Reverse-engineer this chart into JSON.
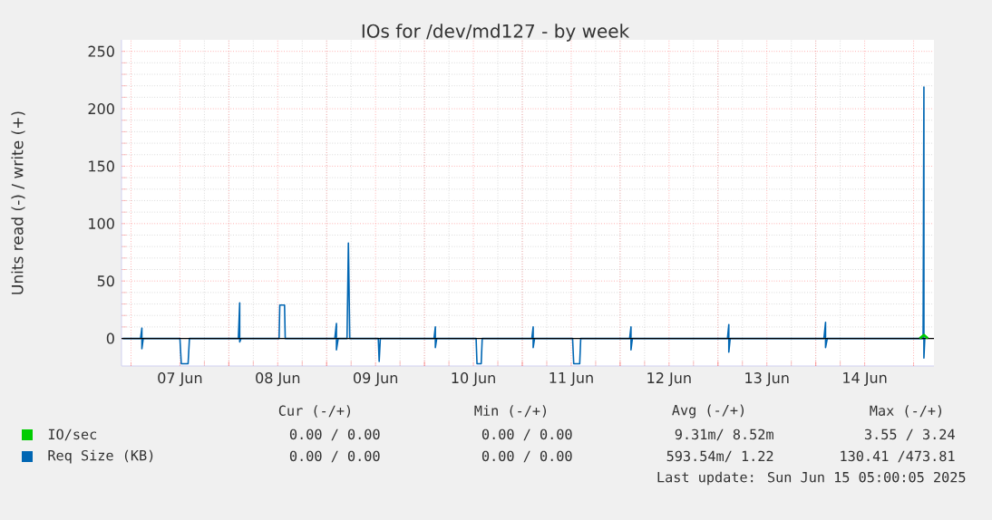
{
  "chart_data": {
    "type": "line",
    "title": "IOs for /dev/md127 - by week",
    "ylabel": "Units read (-) / write (+)",
    "xlim": [
      "2025-06-06T21:40",
      "2025-06-15T05:00"
    ],
    "xticks": [
      {
        "value": "2025-06-07T00:00",
        "label": null
      },
      {
        "value": "2025-06-07T12:00",
        "label": "07 Jun"
      },
      {
        "value": "2025-06-08T00:00",
        "label": null
      },
      {
        "value": "2025-06-08T12:00",
        "label": "08 Jun"
      },
      {
        "value": "2025-06-09T00:00",
        "label": null
      },
      {
        "value": "2025-06-09T12:00",
        "label": "09 Jun"
      },
      {
        "value": "2025-06-10T00:00",
        "label": null
      },
      {
        "value": "2025-06-10T12:00",
        "label": "10 Jun"
      },
      {
        "value": "2025-06-11T00:00",
        "label": null
      },
      {
        "value": "2025-06-11T12:00",
        "label": "11 Jun"
      },
      {
        "value": "2025-06-12T00:00",
        "label": null
      },
      {
        "value": "2025-06-12T12:00",
        "label": "12 Jun"
      },
      {
        "value": "2025-06-13T00:00",
        "label": null
      },
      {
        "value": "2025-06-13T12:00",
        "label": "13 Jun"
      },
      {
        "value": "2025-06-14T00:00",
        "label": null
      },
      {
        "value": "2025-06-14T12:00",
        "label": "14 Jun"
      },
      {
        "value": "2025-06-15T00:00",
        "label": null
      }
    ],
    "ylim": [
      -24,
      260
    ],
    "yticks": [
      0,
      50,
      100,
      150,
      200,
      250
    ],
    "grid": true,
    "legend": "bottom left",
    "series": [
      {
        "name": "IO/sec",
        "color": "#00cc00",
        "x": [
          "2025-06-15T01:30",
          "2025-06-15T02:32",
          "2025-06-15T03:30"
        ],
        "values": [
          0,
          3,
          0
        ]
      },
      {
        "name": "Req Size (KB)",
        "color": "#0066b3",
        "x": [
          "2025-06-06T22:00",
          "2025-06-07T02:20",
          "2025-06-07T02:40",
          "2025-06-07T02:40",
          "2025-06-07T03:00",
          "2025-06-07T12:00",
          "2025-06-07T12:20",
          "2025-06-07T14:00",
          "2025-06-07T14:20",
          "2025-06-08T02:20",
          "2025-06-08T02:40",
          "2025-06-08T02:40",
          "2025-06-08T03:00",
          "2025-06-08T12:20",
          "2025-06-08T12:30",
          "2025-06-08T13:40",
          "2025-06-08T13:50",
          "2025-06-09T02:00",
          "2025-06-09T02:24",
          "2025-06-09T02:24",
          "2025-06-09T02:50",
          "2025-06-09T05:00",
          "2025-06-09T05:20",
          "2025-06-09T05:40",
          "2025-06-09T12:40",
          "2025-06-09T12:53",
          "2025-06-09T13:10",
          "2025-06-10T02:20",
          "2025-06-10T02:40",
          "2025-06-10T02:40",
          "2025-06-10T03:00",
          "2025-06-10T12:40",
          "2025-06-10T12:53",
          "2025-06-10T13:55",
          "2025-06-10T14:10",
          "2025-06-11T02:20",
          "2025-06-11T02:40",
          "2025-06-11T02:40",
          "2025-06-11T03:00",
          "2025-06-11T12:20",
          "2025-06-11T12:37",
          "2025-06-11T14:05",
          "2025-06-11T14:20",
          "2025-06-12T02:20",
          "2025-06-12T02:40",
          "2025-06-12T02:40",
          "2025-06-12T03:00",
          "2025-06-13T02:20",
          "2025-06-13T02:40",
          "2025-06-13T02:40",
          "2025-06-13T03:00",
          "2025-06-14T02:00",
          "2025-06-14T02:24",
          "2025-06-14T02:24",
          "2025-06-14T02:50",
          "2025-06-15T02:20",
          "2025-06-15T02:32",
          "2025-06-15T02:32",
          "2025-06-15T02:45"
        ],
        "values": [
          0,
          0,
          9,
          -9,
          0,
          0,
          -22,
          -22,
          0,
          0,
          31,
          -3,
          0,
          0,
          29,
          29,
          0,
          0,
          13,
          -10,
          0,
          0,
          83,
          0,
          0,
          -20,
          0,
          0,
          10,
          -8,
          0,
          0,
          -22,
          -22,
          0,
          0,
          10,
          -8,
          0,
          0,
          -22,
          -22,
          0,
          0,
          10,
          -10,
          0,
          0,
          12,
          -12,
          0,
          0,
          14,
          -8,
          0,
          0,
          219,
          -17,
          0
        ]
      }
    ],
    "ref_lines": [
      {
        "axis": "y",
        "value": 0,
        "color": "#000000"
      }
    ],
    "annotations": [
      "Cur (-/+)",
      "Min (-/+)",
      "Avg (-/+)",
      "Max (-/+)",
      "0.00 /  0.00",
      "0.00 /  0.00",
      "9.31m/  8.52m",
      "3.55 /  3.24",
      "0.00 /  0.00",
      "0.00 /  0.00",
      "593.54m/  1.22",
      "130.41 /473.81",
      "Last update: Sun Jun 15 05:00:05 2025"
    ]
  }
}
